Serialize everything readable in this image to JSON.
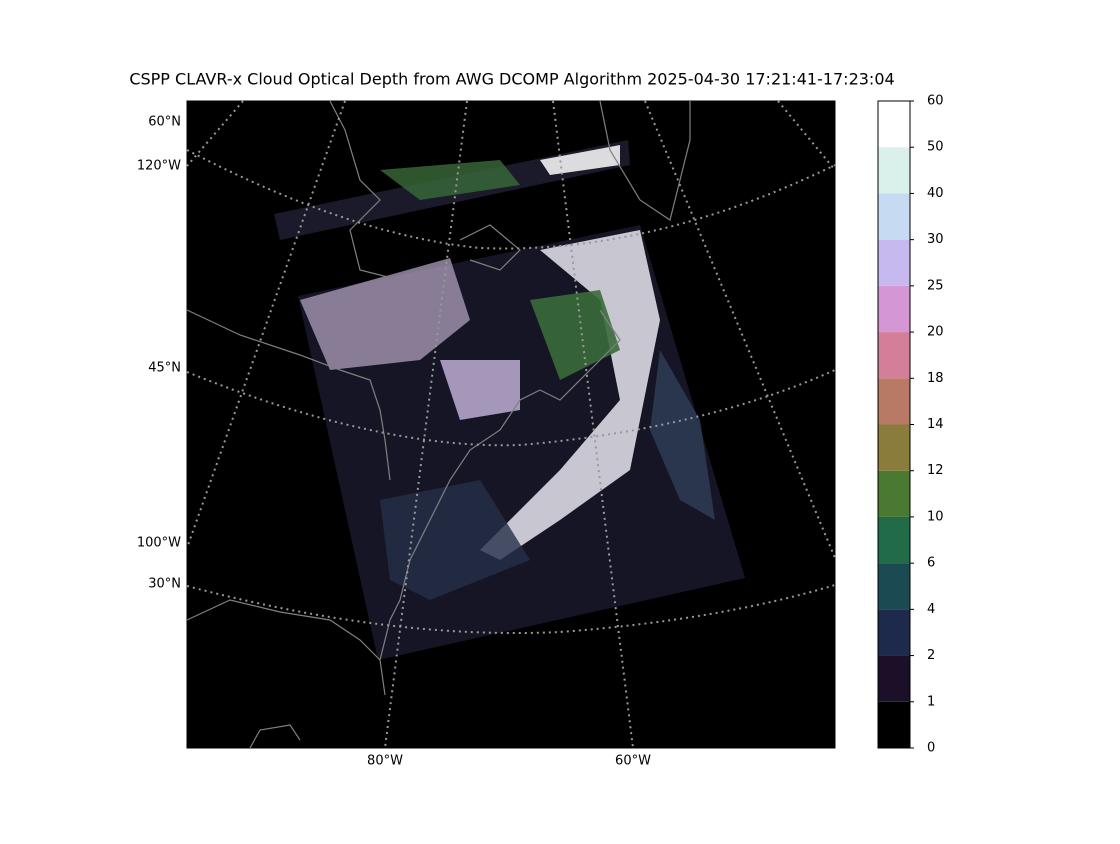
{
  "title": "CSPP CLAVR-x Cloud Optical Depth from AWG DCOMP Algorithm 2025-04-30 17:21:41-17:23:04",
  "map_labels": {
    "lat_60": "60°N",
    "lon_120": "120°W",
    "lat_45": "45°N",
    "lon_100": "100°W",
    "lat_30": "30°N",
    "lon_80": "80°W",
    "lon_60": "60°W"
  },
  "colorbar": {
    "ticks": [
      0,
      1,
      2,
      4,
      6,
      10,
      12,
      14,
      18,
      20,
      25,
      30,
      40,
      50,
      60
    ],
    "colors": [
      "#000000",
      "#1b1028",
      "#1e2a4c",
      "#1b4a52",
      "#216b48",
      "#4a7a32",
      "#8a7c3a",
      "#b87a64",
      "#d47f9a",
      "#d596d6",
      "#c5b9f0",
      "#c6daf2",
      "#d9f1ea",
      "#ffffff"
    ]
  }
}
